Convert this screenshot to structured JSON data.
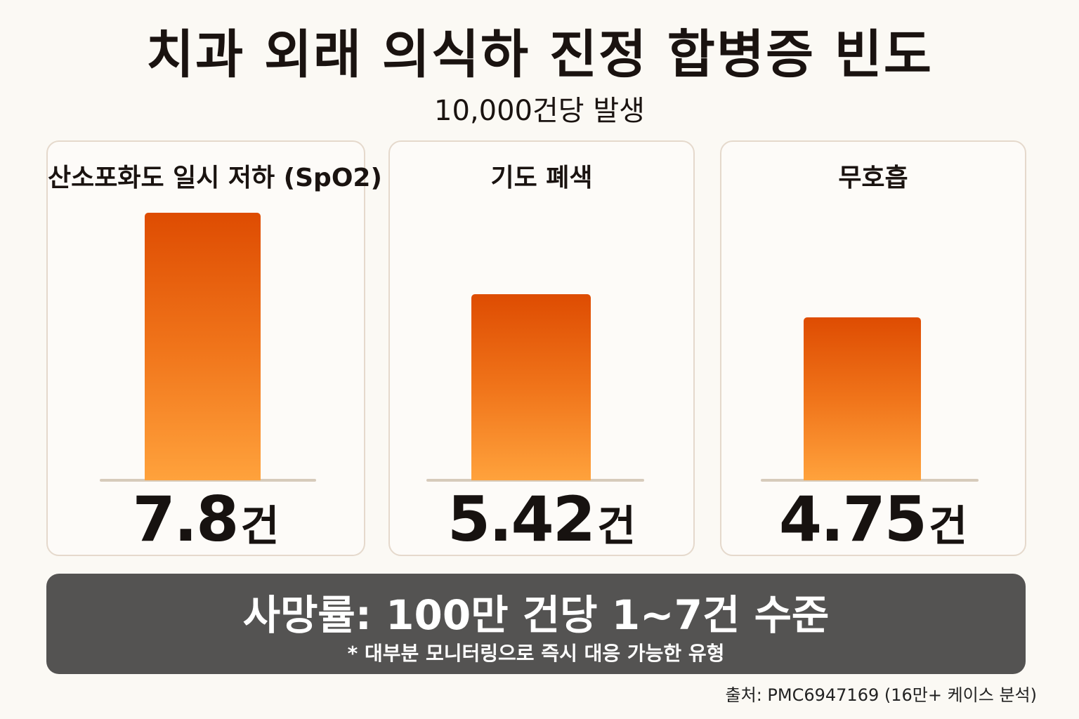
{
  "chart_data": {
    "type": "bar",
    "title": "치과 외래 의식하 진정 합병증 빈도",
    "subtitle": "10,000건당 발생",
    "unit": "건",
    "categories": [
      "산소포화도 일시 저하 (SpO2)",
      "기도 폐색",
      "무호흡"
    ],
    "values": [
      7.8,
      5.42,
      4.75
    ],
    "value_labels": [
      "7.8",
      "5.42",
      "4.75"
    ],
    "ylim": [
      0,
      8.5
    ],
    "grid": false,
    "bar_gradient": [
      "#de4c02",
      "#ffa23c"
    ]
  },
  "footer": {
    "main": "사망률: 100만 건당 1~7건 수준",
    "note": "* 대부분 모니터링으로 즉시 대응 가능한 유형"
  },
  "source": "출처: PMC6947169 (16만+ 케이스 분석)",
  "colors": {
    "background": "#fbf9f4",
    "footer_box": "#545352",
    "card_border": "#e5d9cc"
  }
}
